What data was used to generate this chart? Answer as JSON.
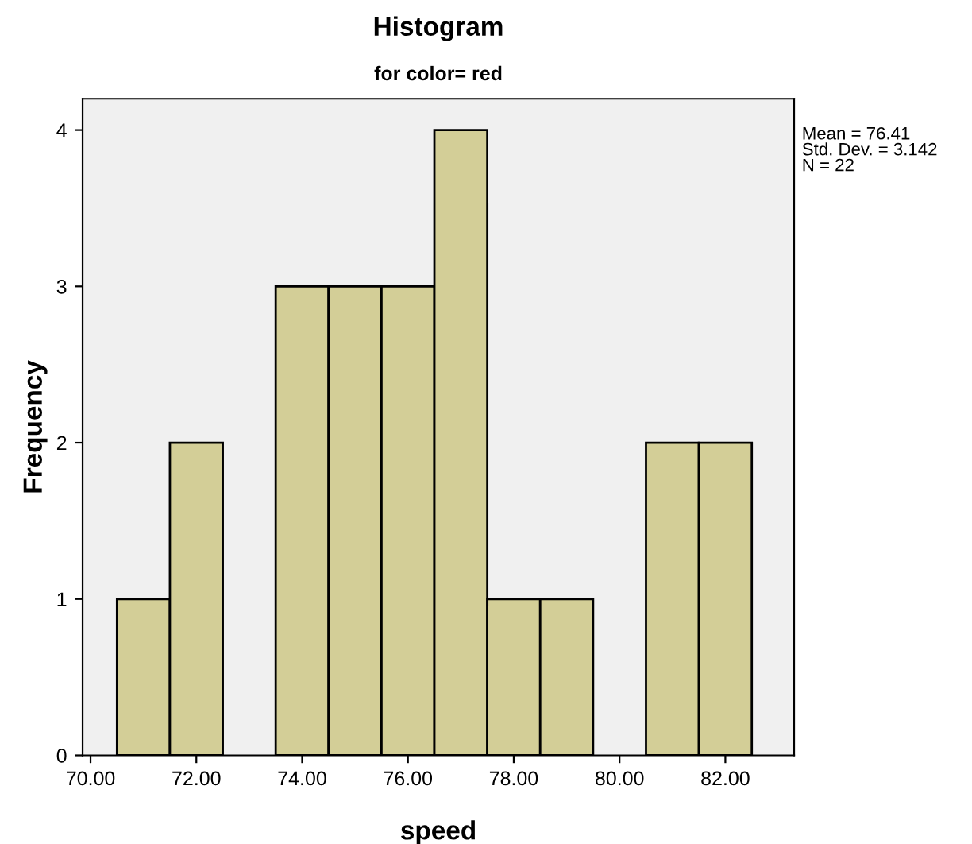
{
  "chart_data": {
    "type": "histogram",
    "title": "Histogram",
    "subtitle": "for color= red",
    "xlabel": "speed",
    "ylabel": "Frequency",
    "bins": [
      70.5,
      71.5,
      72.5,
      73.5,
      74.5,
      75.5,
      76.5,
      77.5,
      78.5,
      79.5,
      80.5,
      81.5,
      82.5
    ],
    "values": [
      1,
      2,
      0,
      3,
      3,
      3,
      4,
      1,
      1,
      0,
      2,
      2
    ],
    "color": "#d3ce97",
    "xlim": [
      69.85,
      83.3
    ],
    "xticks": [
      {
        "value": 70,
        "label": "70.00"
      },
      {
        "value": 72,
        "label": "72.00"
      },
      {
        "value": 74,
        "label": "74.00"
      },
      {
        "value": 76,
        "label": "76.00"
      },
      {
        "value": 78,
        "label": "78.00"
      },
      {
        "value": 80,
        "label": "80.00"
      },
      {
        "value": 82,
        "label": "82.00"
      }
    ],
    "ylim": [
      0,
      4.2
    ],
    "yticks": [
      0,
      1,
      2,
      3,
      4
    ],
    "annotations": [
      "Mean = 76.41\nStd. Dev. = 3.142\nN = 22"
    ],
    "grid": false
  }
}
